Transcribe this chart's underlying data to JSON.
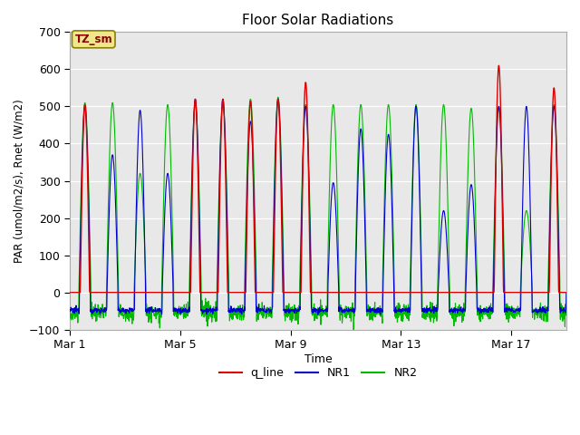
{
  "title": "Floor Solar Radiations",
  "xlabel": "Time",
  "ylabel": "PAR (umol/m2/s), Rnet (W/m2)",
  "ylim": [
    -100,
    700
  ],
  "yticks": [
    -100,
    0,
    100,
    200,
    300,
    400,
    500,
    600,
    700
  ],
  "xtick_labels": [
    "Mar 1",
    "Mar 5",
    "Mar 9",
    "Mar 13",
    "Mar 17"
  ],
  "xtick_positions": [
    0,
    4,
    8,
    12,
    16
  ],
  "n_days": 18,
  "fig_bg_color": "#ffffff",
  "plot_bg_lower": "#e8e8e8",
  "plot_bg_upper": "#d0d0d0",
  "annotation_text": "TZ_sm",
  "annotation_bg": "#f0e68c",
  "annotation_border": "#8B8000",
  "line_colors": {
    "q_line": "#dd0000",
    "NR1": "#0000cc",
    "NR2": "#00bb00"
  },
  "legend_labels": [
    "q_line",
    "NR1",
    "NR2"
  ]
}
